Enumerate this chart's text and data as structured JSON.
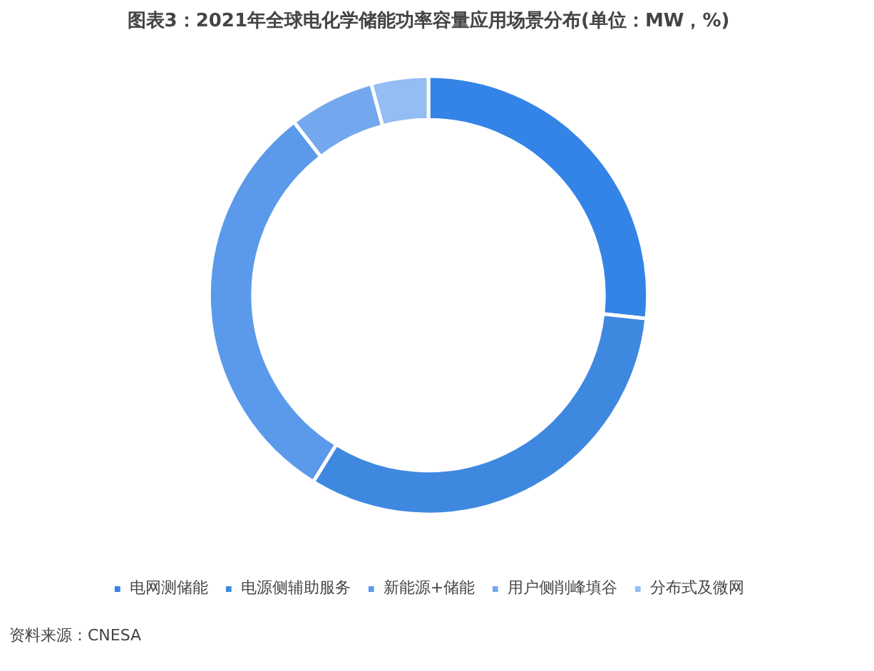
{
  "chart_data": {
    "type": "donut",
    "title": "图表3：2021年全球电化学储能功率容量应用场景分布(单位：MW，%)",
    "categories": [
      "电网测储能",
      "电源侧辅助服务",
      "新能源+储能",
      "用户侧削峰填谷",
      "分布式及微网"
    ],
    "values": [
      26.7,
      32.1,
      30.7,
      6.3,
      4.2
    ],
    "colors": [
      "#3384e6",
      "#3f88e0",
      "#5b9aea",
      "#74a8ee",
      "#93bdf3"
    ],
    "legend": "bottom",
    "annotations": [
      "资料来源：CNESA"
    ]
  }
}
